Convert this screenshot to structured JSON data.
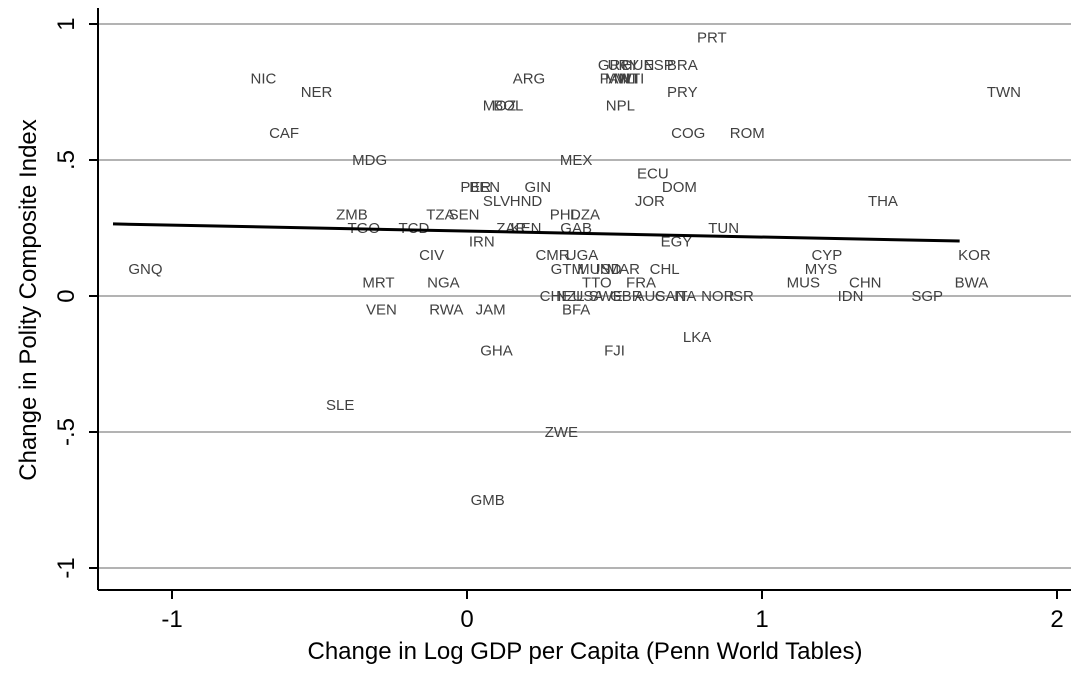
{
  "chart_data": {
    "type": "scatter",
    "title": "",
    "xlabel": "Change in Log GDP per Capita (Penn World Tables)",
    "ylabel": "Change in Polity Composite Index",
    "xlim": [
      -1.25,
      2.05
    ],
    "ylim": [
      -1.05,
      1.02
    ],
    "x_ticks": [
      -1,
      0,
      1,
      2
    ],
    "x_tick_labels": [
      "-1",
      "0",
      "1",
      "2"
    ],
    "y_ticks": [
      -1,
      -0.5,
      0,
      0.5,
      1
    ],
    "y_tick_labels": [
      "-1",
      "-.5",
      "0",
      ".5",
      "1"
    ],
    "grid": "horizontal",
    "points": [
      {
        "label": "PRT",
        "x": 0.83,
        "y": 0.95
      },
      {
        "label": "NIC",
        "x": -0.69,
        "y": 0.8
      },
      {
        "label": "NER",
        "x": -0.51,
        "y": 0.75
      },
      {
        "label": "ARG",
        "x": 0.21,
        "y": 0.8
      },
      {
        "label": "GRC",
        "x": 0.5,
        "y": 0.85
      },
      {
        "label": "URY",
        "x": 0.53,
        "y": 0.85
      },
      {
        "label": "HUN",
        "x": 0.58,
        "y": 0.85
      },
      {
        "label": "ESP",
        "x": 0.65,
        "y": 0.85
      },
      {
        "label": "BRA",
        "x": 0.73,
        "y": 0.85
      },
      {
        "label": "PAN",
        "x": 0.5,
        "y": 0.8
      },
      {
        "label": "MWI",
        "x": 0.52,
        "y": 0.8
      },
      {
        "label": "MLI",
        "x": 0.54,
        "y": 0.8
      },
      {
        "label": "HTI",
        "x": 0.56,
        "y": 0.8
      },
      {
        "label": "PRY",
        "x": 0.73,
        "y": 0.75
      },
      {
        "label": "TWN",
        "x": 1.82,
        "y": 0.75
      },
      {
        "label": "MOZ",
        "x": 0.11,
        "y": 0.7
      },
      {
        "label": "BOL",
        "x": 0.14,
        "y": 0.7
      },
      {
        "label": "NPL",
        "x": 0.52,
        "y": 0.7
      },
      {
        "label": "CAF",
        "x": -0.62,
        "y": 0.6
      },
      {
        "label": "COG",
        "x": 0.75,
        "y": 0.6
      },
      {
        "label": "ROM",
        "x": 0.95,
        "y": 0.6
      },
      {
        "label": "MDG",
        "x": -0.33,
        "y": 0.5
      },
      {
        "label": "MEX",
        "x": 0.37,
        "y": 0.5
      },
      {
        "label": "ECU",
        "x": 0.63,
        "y": 0.45
      },
      {
        "label": "PER",
        "x": 0.03,
        "y": 0.4
      },
      {
        "label": "BEN",
        "x": 0.06,
        "y": 0.4
      },
      {
        "label": "GIN",
        "x": 0.24,
        "y": 0.4
      },
      {
        "label": "DOM",
        "x": 0.72,
        "y": 0.4
      },
      {
        "label": "SLV",
        "x": 0.1,
        "y": 0.35
      },
      {
        "label": "HND",
        "x": 0.2,
        "y": 0.35
      },
      {
        "label": "JOR",
        "x": 0.62,
        "y": 0.35
      },
      {
        "label": "THA",
        "x": 1.41,
        "y": 0.35
      },
      {
        "label": "ZMB",
        "x": -0.39,
        "y": 0.3
      },
      {
        "label": "TZA",
        "x": -0.09,
        "y": 0.3
      },
      {
        "label": "SEN",
        "x": -0.01,
        "y": 0.3
      },
      {
        "label": "PHL",
        "x": 0.33,
        "y": 0.3
      },
      {
        "label": "DZA",
        "x": 0.4,
        "y": 0.3
      },
      {
        "label": "TGO",
        "x": -0.35,
        "y": 0.25
      },
      {
        "label": "TCD",
        "x": -0.18,
        "y": 0.25
      },
      {
        "label": "ZAR",
        "x": 0.15,
        "y": 0.25
      },
      {
        "label": "KEN",
        "x": 0.2,
        "y": 0.25
      },
      {
        "label": "GAB",
        "x": 0.37,
        "y": 0.25
      },
      {
        "label": "TUN",
        "x": 0.87,
        "y": 0.25
      },
      {
        "label": "IRN",
        "x": 0.05,
        "y": 0.2
      },
      {
        "label": "EGY",
        "x": 0.71,
        "y": 0.2
      },
      {
        "label": "CIV",
        "x": -0.12,
        "y": 0.15
      },
      {
        "label": "CMR",
        "x": 0.29,
        "y": 0.15
      },
      {
        "label": "UGA",
        "x": 0.39,
        "y": 0.15
      },
      {
        "label": "CYP",
        "x": 1.22,
        "y": 0.15
      },
      {
        "label": "KOR",
        "x": 1.72,
        "y": 0.15
      },
      {
        "label": "GNQ",
        "x": -1.09,
        "y": 0.1
      },
      {
        "label": "GTM",
        "x": 0.34,
        "y": 0.1
      },
      {
        "label": "MUS",
        "x": 0.43,
        "y": 0.1
      },
      {
        "label": "IND",
        "x": 0.48,
        "y": 0.1
      },
      {
        "label": "MAR",
        "x": 0.53,
        "y": 0.1
      },
      {
        "label": "CHL",
        "x": 0.67,
        "y": 0.1
      },
      {
        "label": "MYS",
        "x": 1.2,
        "y": 0.1
      },
      {
        "label": "MRT",
        "x": -0.3,
        "y": 0.05
      },
      {
        "label": "NGA",
        "x": -0.08,
        "y": 0.05
      },
      {
        "label": "TTO",
        "x": 0.44,
        "y": 0.05
      },
      {
        "label": "FRA",
        "x": 0.59,
        "y": 0.05
      },
      {
        "label": "MUS",
        "x": 1.14,
        "y": 0.05
      },
      {
        "label": "CHN",
        "x": 1.35,
        "y": 0.05
      },
      {
        "label": "BWA",
        "x": 1.71,
        "y": 0.05
      },
      {
        "label": "CHE",
        "x": 0.3,
        "y": 0
      },
      {
        "label": "NZL",
        "x": 0.35,
        "y": 0
      },
      {
        "label": "USA",
        "x": 0.41,
        "y": 0
      },
      {
        "label": "SWE",
        "x": 0.47,
        "y": 0
      },
      {
        "label": "GBR",
        "x": 0.54,
        "y": 0
      },
      {
        "label": "AUS",
        "x": 0.62,
        "y": 0
      },
      {
        "label": "CAN",
        "x": 0.69,
        "y": 0
      },
      {
        "label": "ITA",
        "x": 0.74,
        "y": 0
      },
      {
        "label": "NOR",
        "x": 0.85,
        "y": 0
      },
      {
        "label": "ISR",
        "x": 0.93,
        "y": 0
      },
      {
        "label": "IDN",
        "x": 1.3,
        "y": 0
      },
      {
        "label": "SGP",
        "x": 1.56,
        "y": 0
      },
      {
        "label": "VEN",
        "x": -0.29,
        "y": -0.05
      },
      {
        "label": "RWA",
        "x": -0.07,
        "y": -0.05
      },
      {
        "label": "JAM",
        "x": 0.08,
        "y": -0.05
      },
      {
        "label": "BFA",
        "x": 0.37,
        "y": -0.05
      },
      {
        "label": "LKA",
        "x": 0.78,
        "y": -0.15
      },
      {
        "label": "GHA",
        "x": 0.1,
        "y": -0.2
      },
      {
        "label": "FJI",
        "x": 0.5,
        "y": -0.2
      },
      {
        "label": "SLE",
        "x": -0.43,
        "y": -0.4
      },
      {
        "label": "ZWE",
        "x": 0.32,
        "y": -0.5
      },
      {
        "label": "GMB",
        "x": 0.07,
        "y": -0.75
      }
    ],
    "fit_line": {
      "x": [
        -1.2,
        1.67
      ],
      "y": [
        0.265,
        0.202
      ]
    }
  }
}
